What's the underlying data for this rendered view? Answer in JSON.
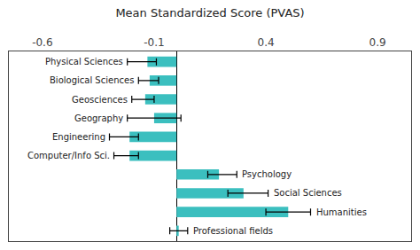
{
  "chart_data": {
    "type": "bar",
    "orientation": "horizontal",
    "title": "Mean Standardized Score (PVAS)",
    "categories": [
      "Physical Sciences",
      "Biological Sciences",
      "Geosciences",
      "Geography",
      "Engineering",
      "Computer/Info Sci.",
      "Psychology",
      "Social Sciences",
      "Humanities",
      "Professional fields"
    ],
    "values": [
      -0.13,
      -0.12,
      -0.14,
      -0.1,
      -0.21,
      -0.21,
      0.19,
      0.3,
      0.5,
      0.01
    ],
    "error_minus": [
      0.09,
      0.05,
      0.06,
      0.12,
      0.09,
      0.07,
      0.05,
      0.07,
      0.1,
      0.04
    ],
    "error_plus": [
      0.04,
      0.04,
      0.04,
      0.12,
      0.04,
      0.04,
      0.08,
      0.11,
      0.1,
      0.04
    ],
    "color": "#3BBFBF",
    "xlim": [
      -0.75,
      1.05
    ],
    "xticks": [
      -0.6,
      -0.1,
      0.4,
      0.9
    ],
    "grid": false,
    "tick_labels": "x"
  }
}
